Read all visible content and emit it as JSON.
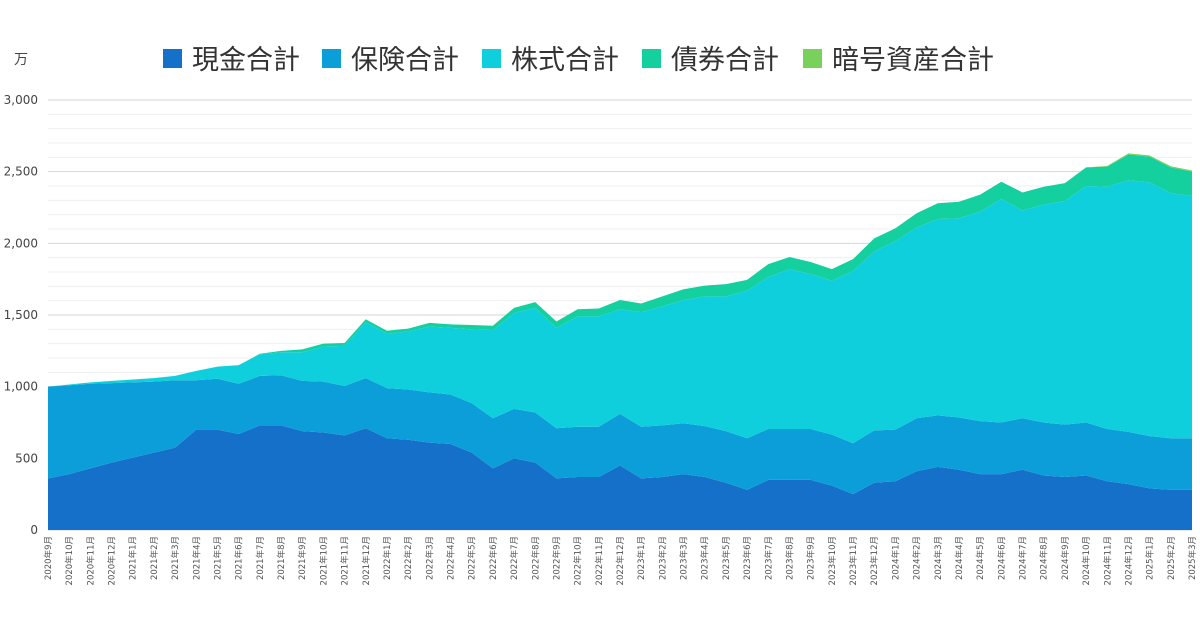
{
  "chart_data": {
    "type": "area",
    "stacked": true,
    "unit_label": "万",
    "legend_position": "top",
    "grid": true,
    "ylim": [
      0,
      3000
    ],
    "yticks": [
      0,
      500,
      1000,
      1500,
      2000,
      2500,
      3000
    ],
    "ytick_labels": [
      "0",
      "500",
      "1,000",
      "1,500",
      "2,000",
      "2,500",
      "3,000"
    ],
    "categories": [
      "2020年9月",
      "2020年10月",
      "2020年11月",
      "2020年12月",
      "2021年1月",
      "2021年2月",
      "2021年3月",
      "2021年4月",
      "2021年5月",
      "2021年6月",
      "2021年7月",
      "2021年8月",
      "2021年9月",
      "2021年10月",
      "2021年11月",
      "2021年12月",
      "2022年1月",
      "2022年2月",
      "2022年3月",
      "2022年4月",
      "2022年5月",
      "2022年6月",
      "2022年7月",
      "2022年8月",
      "2022年9月",
      "2022年10月",
      "2022年11月",
      "2022年12月",
      "2023年1月",
      "2023年2月",
      "2023年3月",
      "2023年4月",
      "2023年5月",
      "2023年6月",
      "2023年7月",
      "2023年8月",
      "2023年9月",
      "2023年10月",
      "2023年11月",
      "2023年12月",
      "2024年1月",
      "2024年2月",
      "2024年3月",
      "2024年4月",
      "2024年5月",
      "2024年6月",
      "2024年7月",
      "2024年8月",
      "2024年9月",
      "2024年10月",
      "2024年11月",
      "2024年12月",
      "2025年1月",
      "2025年2月",
      "2025年3月"
    ],
    "series": [
      {
        "name": "現金合計",
        "color": "#1470c8",
        "values": [
          360,
          390,
          430,
          470,
          505,
          540,
          575,
          700,
          700,
          670,
          730,
          730,
          690,
          680,
          660,
          710,
          640,
          630,
          610,
          600,
          540,
          430,
          500,
          470,
          360,
          370,
          370,
          450,
          360,
          370,
          390,
          370,
          330,
          280,
          350,
          350,
          350,
          310,
          250,
          330,
          340,
          410,
          440,
          420,
          390,
          390,
          420,
          380,
          370,
          380,
          340,
          320,
          290,
          280,
          280
        ]
      },
      {
        "name": "保険合計",
        "color": "#0b9ed8",
        "values": [
          640,
          620,
          590,
          555,
          525,
          495,
          470,
          345,
          355,
          350,
          345,
          350,
          350,
          355,
          345,
          350,
          350,
          350,
          350,
          345,
          345,
          350,
          345,
          350,
          350,
          350,
          350,
          360,
          360,
          360,
          355,
          355,
          360,
          360,
          355,
          355,
          355,
          355,
          355,
          365,
          360,
          370,
          360,
          365,
          370,
          360,
          360,
          370,
          365,
          370,
          365,
          365,
          365,
          360,
          360
        ]
      },
      {
        "name": "株式合計",
        "color": "#10cfdc",
        "values": [
          0,
          5,
          10,
          15,
          20,
          25,
          30,
          65,
          85,
          130,
          150,
          160,
          200,
          245,
          280,
          390,
          380,
          405,
          460,
          465,
          515,
          615,
          670,
          730,
          700,
          770,
          770,
          730,
          800,
          830,
          860,
          905,
          940,
          1030,
          1060,
          1115,
          1080,
          1075,
          1200,
          1250,
          1315,
          1330,
          1370,
          1390,
          1460,
          1560,
          1450,
          1520,
          1560,
          1650,
          1690,
          1755,
          1770,
          1710,
          1690
        ]
      },
      {
        "name": "債券合計",
        "color": "#14cf9e",
        "values": [
          0,
          0,
          0,
          0,
          0,
          0,
          0,
          0,
          0,
          0,
          5,
          10,
          20,
          20,
          20,
          20,
          20,
          20,
          25,
          25,
          30,
          30,
          35,
          40,
          45,
          50,
          55,
          65,
          60,
          70,
          75,
          75,
          85,
          75,
          90,
          85,
          85,
          80,
          85,
          90,
          90,
          100,
          110,
          115,
          120,
          120,
          125,
          125,
          125,
          130,
          140,
          180,
          180,
          180,
          170
        ]
      },
      {
        "name": "暗号資産合計",
        "color": "#79d05a",
        "values": [
          0,
          0,
          0,
          0,
          0,
          0,
          0,
          0,
          0,
          0,
          0,
          0,
          0,
          0,
          0,
          0,
          0,
          0,
          0,
          0,
          0,
          0,
          0,
          0,
          0,
          0,
          0,
          0,
          0,
          0,
          0,
          0,
          0,
          0,
          0,
          0,
          0,
          0,
          0,
          0,
          0,
          0,
          0,
          0,
          0,
          0,
          0,
          0,
          0,
          0,
          5,
          8,
          8,
          8,
          8
        ]
      }
    ]
  }
}
